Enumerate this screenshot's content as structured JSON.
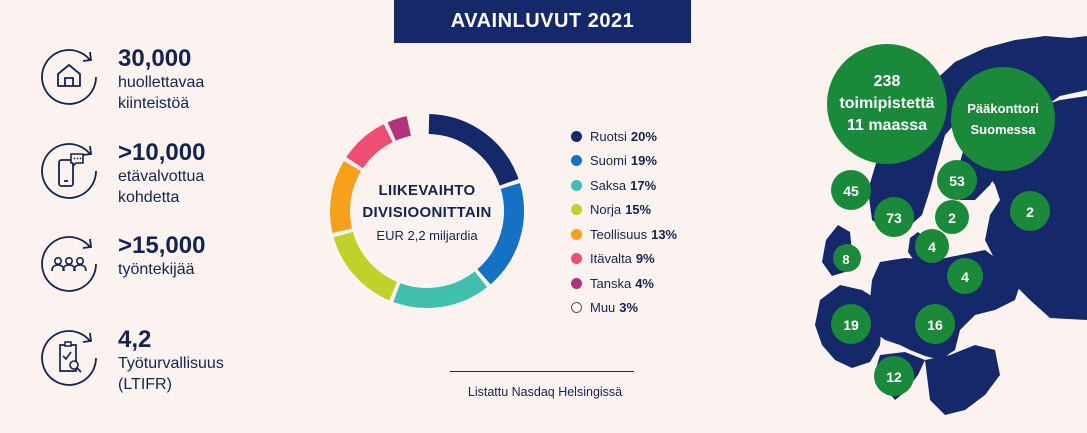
{
  "header": {
    "title": "AVAINLUVUT 2021"
  },
  "stats": [
    {
      "icon": "house-icon",
      "value": "30,000",
      "label_lines": [
        "huollettavaa",
        "kiinteistöä"
      ]
    },
    {
      "icon": "smartphone-icon",
      "value": ">10,000",
      "label_lines": [
        "etävalvottua",
        "kohdetta"
      ]
    },
    {
      "icon": "people-icon",
      "value": ">15,000",
      "label_lines": [
        "työntekijää"
      ]
    },
    {
      "icon": "clipboard-search-icon",
      "value": "4,2",
      "label_lines": [
        "Työturvallisuus",
        "(LTIFR)"
      ]
    }
  ],
  "donut": {
    "title_line1": "LIIKEVAIHTO",
    "title_line2": "DIVISIOONITTAIN",
    "subtitle": "EUR 2,2 miljardia"
  },
  "chart_data": {
    "type": "pie",
    "title": "LIIKEVAIHTO DIVISIOONITTAIN",
    "subtitle": "EUR 2,2 miljardia",
    "categories": [
      "Ruotsi",
      "Suomi",
      "Saksa",
      "Norja",
      "Teollisuus",
      "Itävalta",
      "Tanska",
      "Muu"
    ],
    "values": [
      20,
      19,
      17,
      15,
      13,
      9,
      4,
      3
    ],
    "unit": "%",
    "colors": [
      "#14286a",
      "#1670c4",
      "#40bfae",
      "#bfd12b",
      "#f7a01c",
      "#ef4e73",
      "#b2337b",
      "#ffffff"
    ],
    "legend_placement": "right"
  },
  "legend": [
    {
      "name": "Ruotsi",
      "pct": "20%",
      "color": "#14286a"
    },
    {
      "name": "Suomi",
      "pct": "19%",
      "color": "#1670c4"
    },
    {
      "name": "Saksa",
      "pct": "17%",
      "color": "#40bfae"
    },
    {
      "name": "Norja",
      "pct": "15%",
      "color": "#bfd12b"
    },
    {
      "name": "Teollisuus",
      "pct": "13%",
      "color": "#f7a01c"
    },
    {
      "name": "Itävalta",
      "pct": "9%",
      "color": "#ef4e73"
    },
    {
      "name": "Tanska",
      "pct": "4%",
      "color": "#b2337b"
    },
    {
      "name": "Muu",
      "pct": "3%",
      "color": "#ffffff"
    }
  ],
  "footer": {
    "text": "Listattu Nasdaq Helsingissä"
  },
  "map": {
    "offices_bubble": [
      "238",
      "toimipistettä",
      "11 maassa"
    ],
    "hq_bubble": [
      "Pääkonttori",
      "Suomessa"
    ],
    "country_counts": [
      "45",
      "73",
      "53",
      "2",
      "2",
      "4",
      "4",
      "8",
      "19",
      "16",
      "12"
    ],
    "land_color": "#14286a",
    "bubble_color": "#1a8a3a"
  }
}
